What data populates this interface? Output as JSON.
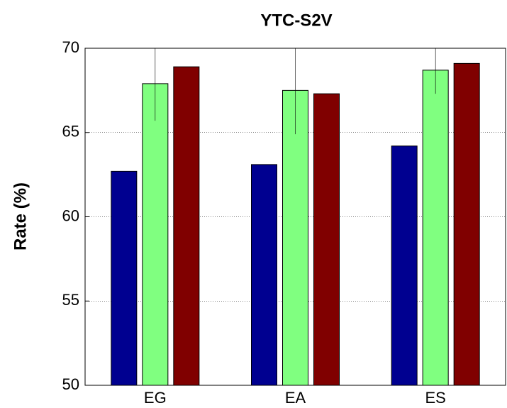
{
  "chart_data": {
    "type": "bar",
    "title": "YTC-S2V",
    "y_label": "Rate (%)",
    "categories": [
      "EG",
      "EA",
      "ES"
    ],
    "series": [
      {
        "color": "#000090",
        "values": [
          62.7,
          63.1,
          64.2
        ]
      },
      {
        "color": "#80ff80",
        "values": [
          67.9,
          67.5,
          68.7
        ],
        "errors": [
          2.2,
          2.6,
          1.4
        ]
      },
      {
        "color": "#800000",
        "values": [
          68.9,
          67.3,
          69.1
        ]
      }
    ],
    "ylim": [
      50,
      70
    ],
    "yticks": [
      50,
      55,
      60,
      65,
      70
    ],
    "grid": true
  }
}
